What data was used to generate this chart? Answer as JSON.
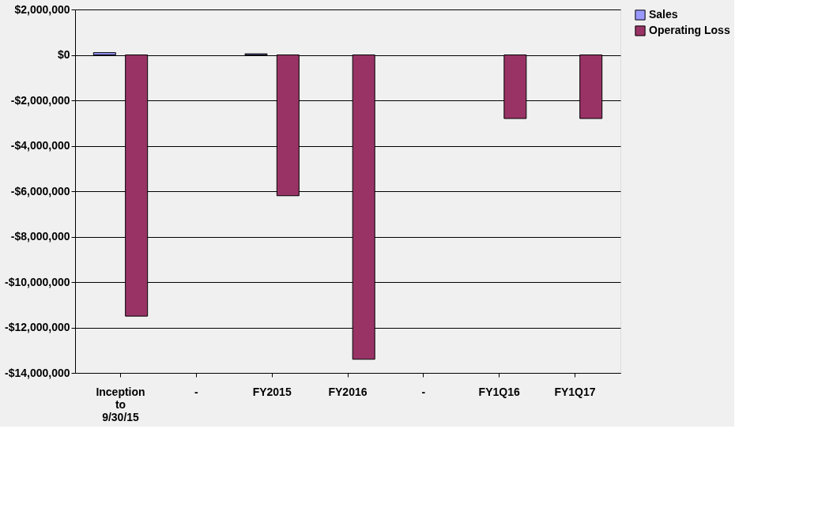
{
  "chart_data": {
    "type": "bar",
    "categories": [
      "Inception to 9/30/15",
      "-",
      "FY2015",
      "FY2016",
      "-",
      "FY1Q16",
      "FY1Q17"
    ],
    "series": [
      {
        "name": "Sales",
        "color": "#9999ff",
        "values": [
          100000,
          null,
          50000,
          null,
          null,
          null,
          null
        ]
      },
      {
        "name": "Operating Loss",
        "color": "#993366",
        "values": [
          -11500000,
          null,
          -6200000,
          -13400000,
          null,
          -2800000,
          -2800000
        ]
      }
    ],
    "ylim": [
      -14000000,
      2000000
    ],
    "yticks": [
      {
        "value": 2000000,
        "label": "$2,000,000"
      },
      {
        "value": 0,
        "label": "$0"
      },
      {
        "value": -2000000,
        "label": "-$2,000,000"
      },
      {
        "value": -4000000,
        "label": "-$4,000,000"
      },
      {
        "value": -6000000,
        "label": "-$6,000,000"
      },
      {
        "value": -8000000,
        "label": "-$8,000,000"
      },
      {
        "value": -10000000,
        "label": "-$10,000,000"
      },
      {
        "value": -12000000,
        "label": "-$12,000,000"
      },
      {
        "value": -14000000,
        "label": "-$14,000,000"
      }
    ],
    "grid": "y",
    "legend": "right"
  }
}
